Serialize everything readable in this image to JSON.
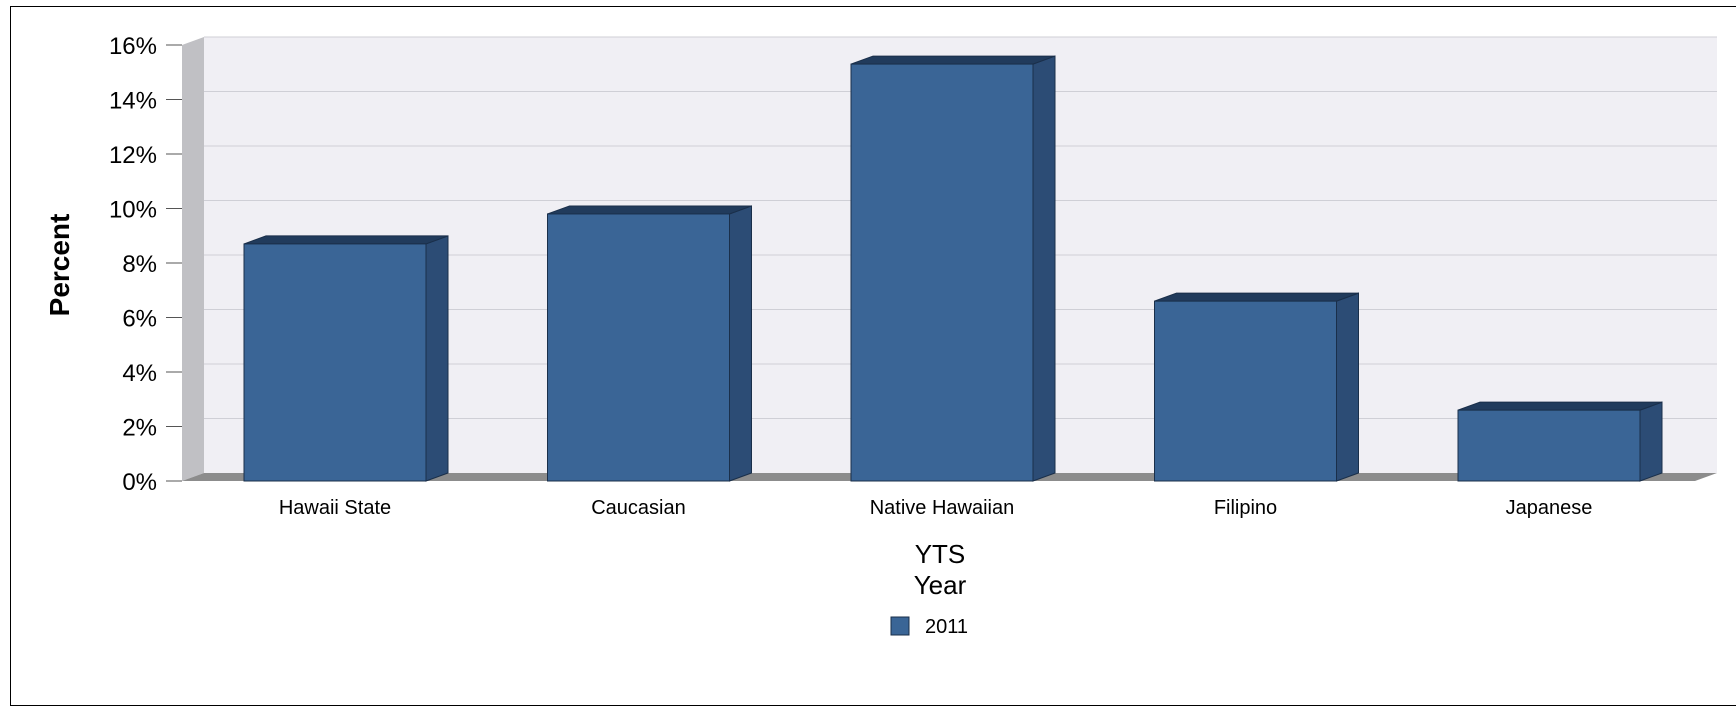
{
  "chart_data": {
    "type": "bar",
    "categories": [
      "Hawaii State",
      "Caucasian",
      "Native Hawaiian",
      "Filipino",
      "Japanese"
    ],
    "series": [
      {
        "name": "2011",
        "values": [
          8.7,
          9.8,
          15.3,
          6.6,
          2.6
        ]
      }
    ],
    "ylabel": "Percent",
    "xlabel": [
      "YTS",
      "Year"
    ],
    "ylim": [
      0,
      16
    ],
    "ytick_step": 2,
    "ytick_format": "percent",
    "grid": true,
    "legend": "bottom-center",
    "three_d": true
  },
  "colors": {
    "bar_front": "#3a6596",
    "bar_side": "#2c4c75",
    "bar_top": "#213b5c",
    "back_wall": "#f0eff4",
    "side_wall": "#c0c0c4",
    "floor": "#8c8c8c",
    "grid": "#cfcfd6"
  }
}
